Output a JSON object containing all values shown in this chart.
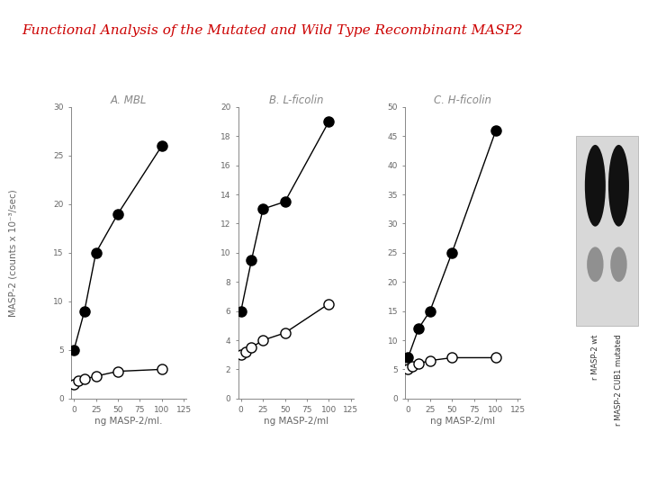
{
  "title": "Functional Analysis of the Mutated and Wild Type Recombinant MASP2",
  "title_color": "#cc0000",
  "title_fontsize": 11,
  "ylabel": "MASP-2 (counts x 10⁻³/sec)",
  "panels": [
    {
      "label": "A. MBL",
      "xlabel": "ng MASP-2/ml.",
      "ylim": [
        0,
        30
      ],
      "yticks": [
        0,
        5,
        10,
        15,
        20,
        25,
        30
      ],
      "xticks": [
        0,
        25,
        50,
        75,
        100,
        125
      ],
      "filled_x": [
        0,
        12,
        25,
        50,
        100
      ],
      "filled_y": [
        5,
        9,
        15,
        19,
        26
      ],
      "open_x": [
        0,
        5,
        12,
        25,
        50,
        100
      ],
      "open_y": [
        1.5,
        1.8,
        2.0,
        2.3,
        2.8,
        3.0
      ]
    },
    {
      "label": "B. L-ficolin",
      "xlabel": "ng MASP-2/ml",
      "ylim": [
        0,
        20
      ],
      "yticks": [
        0,
        2,
        4,
        6,
        8,
        10,
        12,
        14,
        16,
        18,
        20
      ],
      "xticks": [
        0,
        25,
        50,
        75,
        100,
        125
      ],
      "filled_x": [
        0,
        12,
        25,
        50,
        100
      ],
      "filled_y": [
        6.0,
        9.5,
        13.0,
        13.5,
        19.0
      ],
      "open_x": [
        0,
        5,
        12,
        25,
        50,
        100
      ],
      "open_y": [
        3.0,
        3.2,
        3.5,
        4.0,
        4.5,
        6.5
      ]
    },
    {
      "label": "C. H-ficolin",
      "xlabel": "ng MASP-2/ml",
      "ylim": [
        0,
        50
      ],
      "yticks": [
        0,
        5,
        10,
        15,
        20,
        25,
        30,
        35,
        40,
        45,
        50
      ],
      "xticks": [
        0,
        25,
        50,
        75,
        100,
        125
      ],
      "filled_x": [
        0,
        12,
        25,
        50,
        100
      ],
      "filled_y": [
        7,
        12,
        15,
        25,
        46
      ],
      "open_x": [
        0,
        5,
        12,
        25,
        50,
        100
      ],
      "open_y": [
        5,
        5.5,
        6.0,
        6.5,
        7.0,
        7.0
      ]
    }
  ],
  "wb_label_1": "r MASP-2 wt",
  "wb_label_2": "r MASP-2 CUB1 mutated"
}
